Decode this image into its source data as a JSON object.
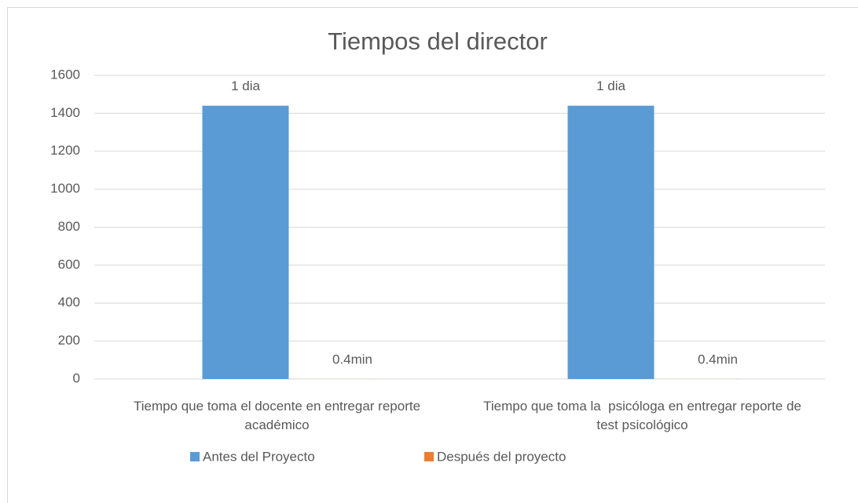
{
  "chart_data": {
    "type": "bar",
    "title": "Tiempos del director",
    "categories": [
      "Tiempo que toma el docente en entregar reporte académico",
      "Tiempo que toma la  psicóloga en entregar reporte de test psicológico"
    ],
    "series": [
      {
        "name": "Antes del Proyecto",
        "color": "#5b9bd5",
        "values": [
          1440,
          1440
        ],
        "value_labels": [
          "1 dia",
          "1 dia"
        ]
      },
      {
        "name": "Después del proyecto",
        "color": "#ed7d31",
        "values": [
          0.4,
          0.4
        ],
        "value_labels": [
          "0.4min",
          "0.4min"
        ]
      }
    ],
    "ylim": [
      0,
      1600
    ],
    "yticks": [
      0,
      200,
      400,
      600,
      800,
      1000,
      1200,
      1400,
      1600
    ],
    "grid": true,
    "legend": "bottom"
  }
}
